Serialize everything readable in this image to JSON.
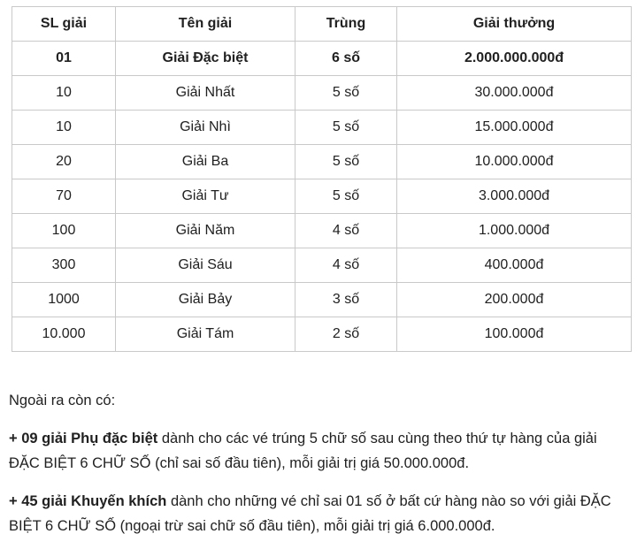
{
  "table": {
    "headers": [
      "SL giải",
      "Tên giải",
      "Trùng",
      "Giải thưởng"
    ],
    "rows": [
      {
        "sl": "01",
        "ten": "Giải Đặc biệt",
        "trung": "6 số",
        "thuong": "2.000.000.000đ"
      },
      {
        "sl": "10",
        "ten": "Giải Nhất",
        "trung": "5 số",
        "thuong": "30.000.000đ"
      },
      {
        "sl": "10",
        "ten": "Giải Nhì",
        "trung": "5 số",
        "thuong": "15.000.000đ"
      },
      {
        "sl": "20",
        "ten": "Giải Ba",
        "trung": "5 số",
        "thuong": "10.000.000đ"
      },
      {
        "sl": "70",
        "ten": "Giải Tư",
        "trung": "5 số",
        "thuong": "3.000.000đ"
      },
      {
        "sl": "100",
        "ten": "Giải Năm",
        "trung": "4 số",
        "thuong": "1.000.000đ"
      },
      {
        "sl": "300",
        "ten": "Giải Sáu",
        "trung": "4 số",
        "thuong": "400.000đ"
      },
      {
        "sl": "1000",
        "ten": "Giải Bảy",
        "trung": "3 số",
        "thuong": "200.000đ"
      },
      {
        "sl": "10.000",
        "ten": "Giải Tám",
        "trung": "2 số",
        "thuong": "100.000đ"
      }
    ]
  },
  "notes": {
    "intro": "Ngoài ra còn có:",
    "items": [
      {
        "bold": "+ 09 giải Phụ đặc biệt",
        "rest": " dành cho các vé trúng 5 chữ số sau cùng theo thứ tự hàng của giải ĐẶC BIỆT 6 CHỮ SỐ (chỉ sai số đầu tiên), mỗi giải trị giá 50.000.000đ."
      },
      {
        "bold": "+ 45 giải Khuyến khích",
        "rest": " dành cho những vé chỉ sai 01 số ở bất cứ hàng nào so với giải ĐẶC BIỆT 6 CHỮ SỐ (ngoại trừ sai chữ số đầu tiên), mỗi giải trị giá 6.000.000đ."
      }
    ]
  },
  "colors": {
    "table_border": "#c9c9c9",
    "text": "#212121",
    "background": "#ffffff"
  }
}
